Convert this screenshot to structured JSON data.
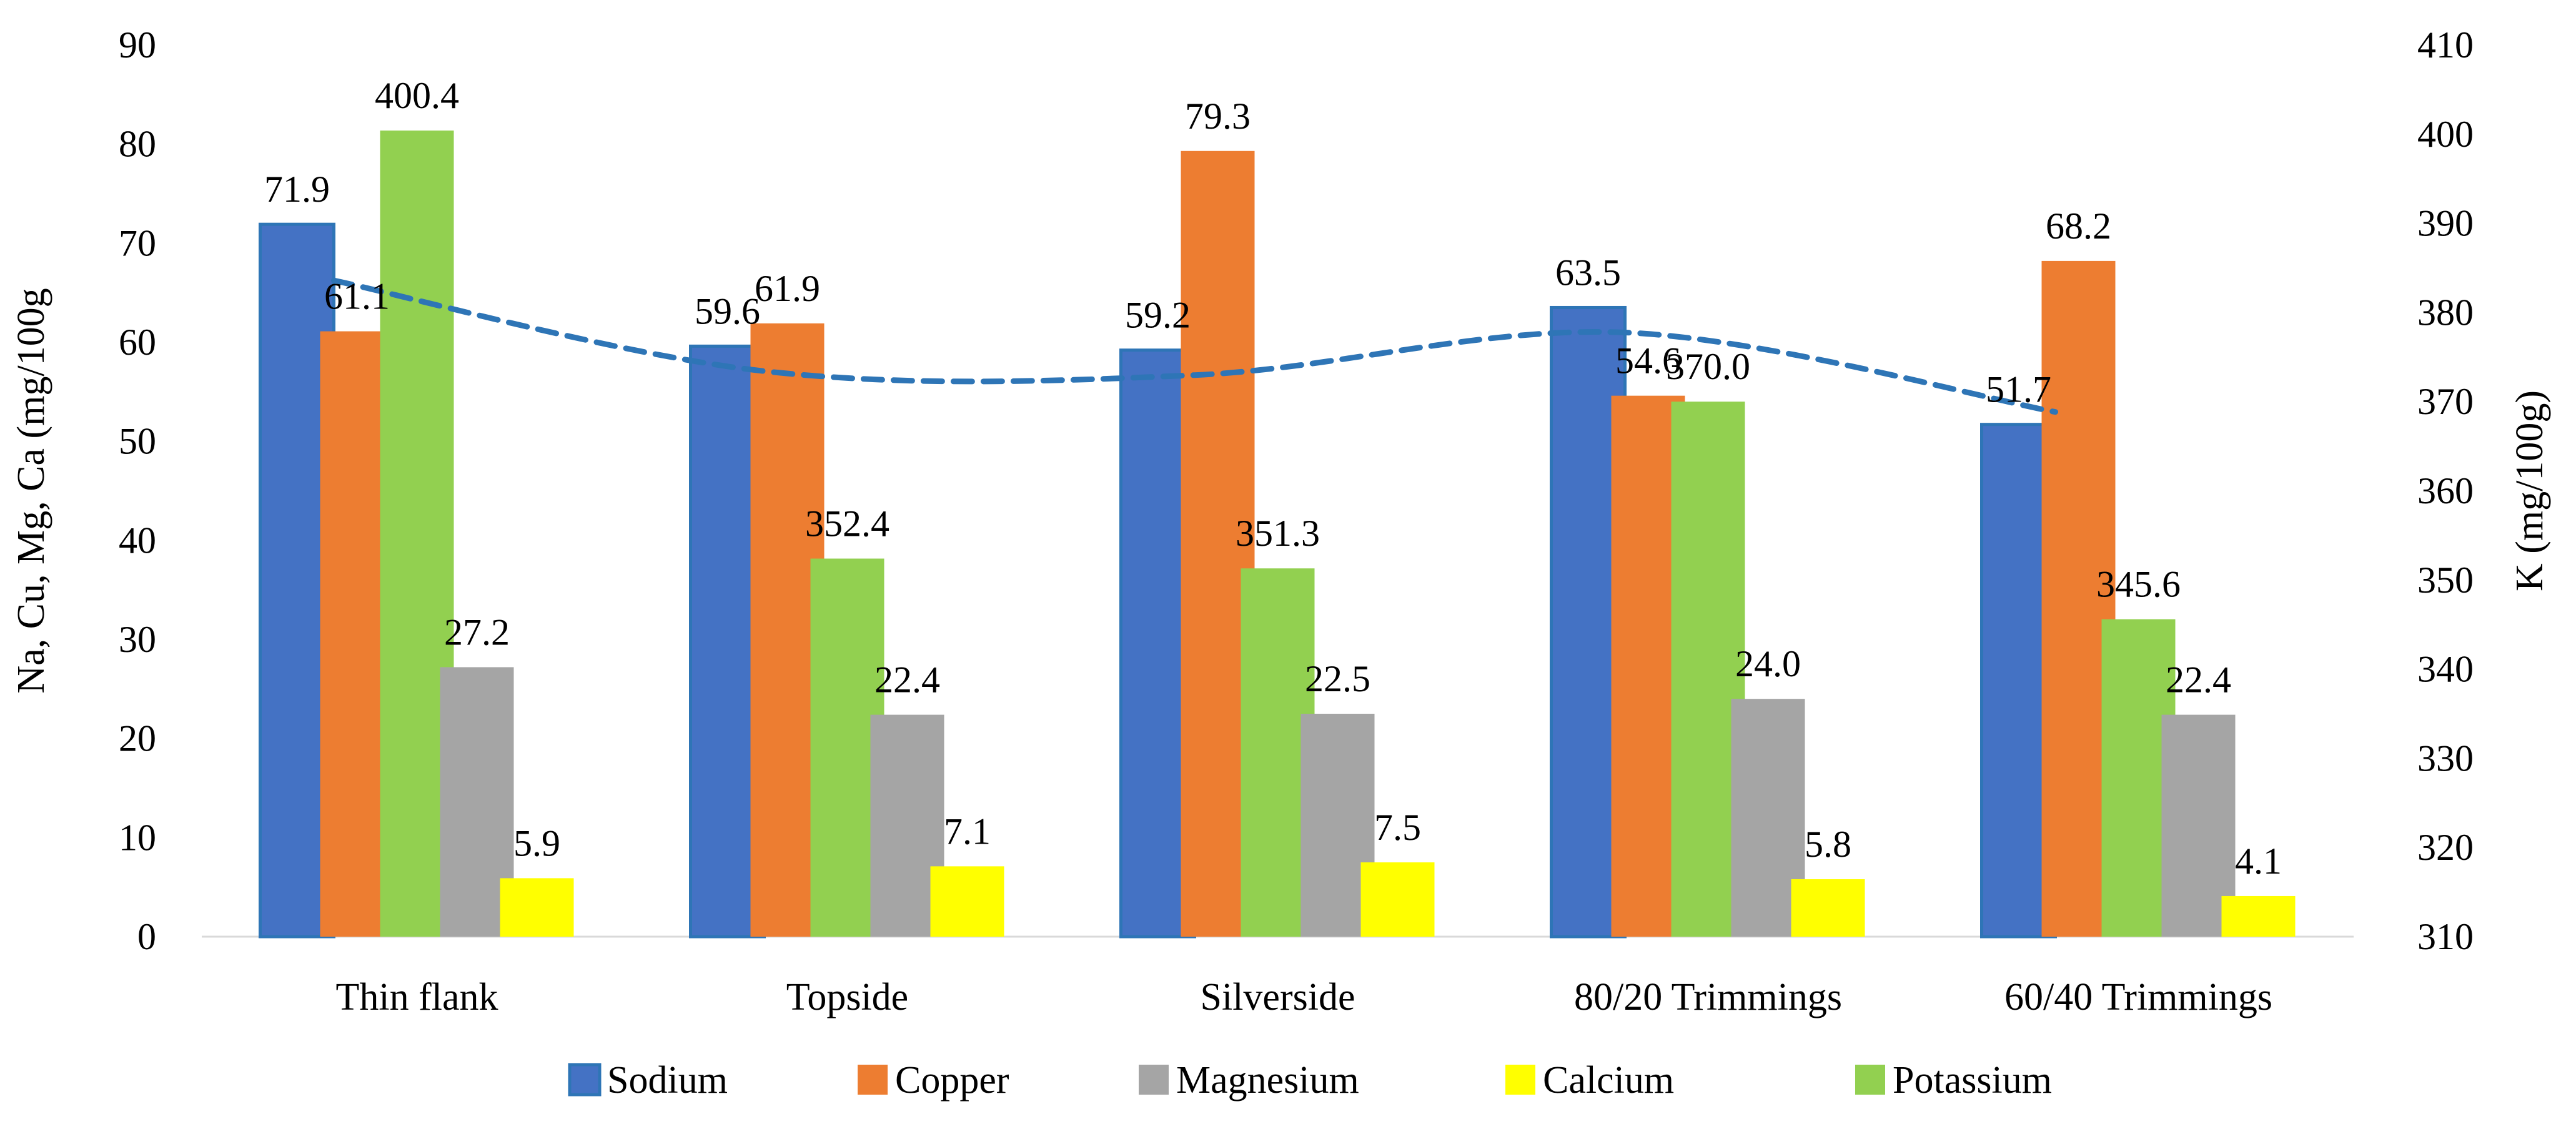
{
  "chart_data": {
    "type": "bar",
    "categories": [
      "Thin flank",
      "Topside",
      "Silverside",
      "80/20 Trimmings",
      "60/40 Trimmings"
    ],
    "series": [
      {
        "name": "Sodium",
        "axis": "left",
        "color": "#4472C4",
        "values": [
          71.9,
          59.6,
          59.2,
          63.5,
          51.7
        ],
        "labels": [
          "71.9",
          "59.6",
          "59.2",
          "63.5",
          "51.7"
        ]
      },
      {
        "name": "Copper",
        "axis": "left",
        "color": "#ED7D31",
        "values": [
          61.1,
          61.9,
          79.3,
          54.6,
          68.2
        ],
        "labels": [
          "61.1",
          "61.9",
          "79.3",
          "54.6",
          "68.2"
        ]
      },
      {
        "name": "Potassium",
        "axis": "right",
        "color": "#92D050",
        "values": [
          400.4,
          352.4,
          351.3,
          370.0,
          345.6
        ],
        "labels": [
          "400.4",
          "352.4",
          "351.3",
          "370.0",
          "345.6"
        ]
      },
      {
        "name": "Magnesium",
        "axis": "left",
        "color": "#A5A5A5",
        "values": [
          27.2,
          22.4,
          22.5,
          24.0,
          22.4
        ],
        "labels": [
          "27.2",
          "22.4",
          "22.5",
          "24.0",
          "22.4"
        ]
      },
      {
        "name": "Calcium",
        "axis": "left",
        "color": "#FFFF00",
        "values": [
          5.9,
          7.1,
          7.5,
          5.8,
          4.1
        ],
        "labels": [
          "5.9",
          "7.1",
          "7.5",
          "5.8",
          "4.1"
        ]
      }
    ],
    "trendline": {
      "series": "Sodium",
      "style": "dashed",
      "color": "#2E75B6"
    },
    "y_left": {
      "label": "Na, Cu, Mg, Ca (mg/100g",
      "min": 0,
      "max": 90,
      "ticks": [
        "0",
        "10",
        "20",
        "30",
        "40",
        "50",
        "60",
        "70",
        "80",
        "90"
      ]
    },
    "y_right": {
      "label": "K (mg/100g)",
      "min": 310,
      "max": 410,
      "ticks": [
        "310",
        "320",
        "330",
        "340",
        "350",
        "360",
        "370",
        "380",
        "390",
        "400",
        "410"
      ]
    },
    "legend": {
      "placement": "bottom",
      "order": [
        "Sodium",
        "Copper",
        "Magnesium",
        "Calcium",
        "Potassium"
      ]
    },
    "grid": false
  }
}
